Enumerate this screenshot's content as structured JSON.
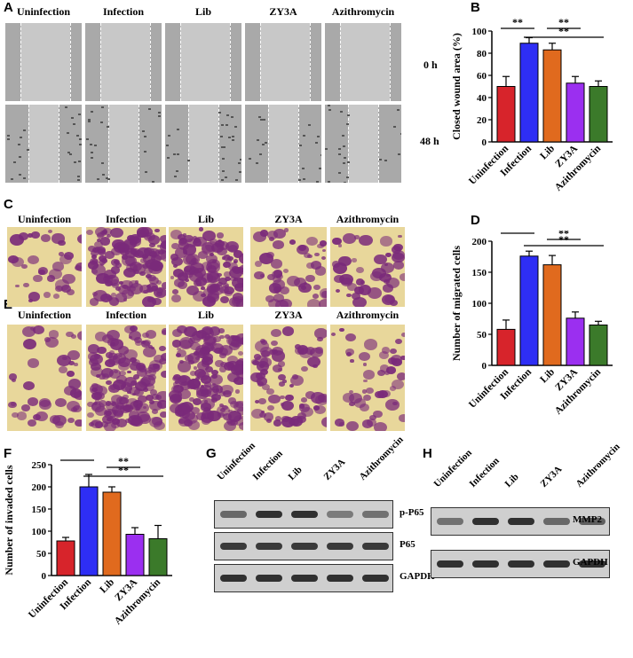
{
  "panels": {
    "A": {
      "letter": "A",
      "columns": [
        "Uninfection",
        "Infection",
        "Lib",
        "ZY3A",
        "Azithromycin"
      ],
      "rows": [
        "0 h",
        "48 h"
      ]
    },
    "C": {
      "letter": "C",
      "columns": [
        "Uninfection",
        "Infection",
        "Lib",
        "ZY3A",
        "Azithromycin"
      ]
    },
    "E": {
      "letter": "E",
      "columns": [
        "Uninfection",
        "Infection",
        "Lib",
        "ZY3A",
        "Azithromycin"
      ]
    },
    "B": {
      "letter": "B"
    },
    "D": {
      "letter": "D"
    },
    "F": {
      "letter": "F"
    },
    "G": {
      "letter": "G",
      "lanes": [
        "Uninfection",
        "Infection",
        "Lib",
        "ZY3A",
        "Azithromycin"
      ],
      "bands": [
        "p-P65",
        "P65",
        "GAPDH"
      ],
      "intensity": [
        [
          0.55,
          0.85,
          0.85,
          0.45,
          0.5
        ],
        [
          0.8,
          0.8,
          0.8,
          0.8,
          0.8
        ],
        [
          0.85,
          0.85,
          0.85,
          0.85,
          0.85
        ]
      ]
    },
    "H": {
      "letter": "H",
      "lanes": [
        "Uninfection",
        "Infection",
        "Lib",
        "ZY3A",
        "Azithromycin"
      ],
      "bands": [
        "MMP2",
        "GAPDH"
      ],
      "intensity": [
        [
          0.5,
          0.85,
          0.85,
          0.55,
          0.6
        ],
        [
          0.85,
          0.85,
          0.85,
          0.85,
          0.85
        ]
      ]
    }
  },
  "colors": {
    "bars": [
      "#d7242b",
      "#2e2ef5",
      "#e06a1e",
      "#9b2ff0",
      "#3b7a2a"
    ],
    "wound": "#a9a9a9",
    "transwell_bg": "#e8d79b",
    "stain": "#7a2a7a"
  },
  "chart_data": [
    {
      "type": "bar",
      "panel": "B",
      "categories": [
        "Uninfection",
        "Infection",
        "Lib",
        "ZY3A",
        "Azithromycin"
      ],
      "values": [
        50,
        89,
        83,
        53,
        50
      ],
      "errors": [
        9,
        5,
        6,
        6,
        5
      ],
      "ylabel": "Closed wound area (%)",
      "ylim": [
        0,
        100
      ],
      "yticks": [
        "0",
        "20",
        "40",
        "60",
        "80",
        "100"
      ],
      "significance": [
        {
          "from": 0,
          "to": 1,
          "label": "**"
        },
        {
          "from": 2,
          "to": 3,
          "label": "**"
        },
        {
          "from": 1,
          "to": 4,
          "label": "**"
        }
      ]
    },
    {
      "type": "bar",
      "panel": "D",
      "categories": [
        "Uninfection",
        "Infection",
        "Lib",
        "ZY3A",
        "Azithromycin"
      ],
      "values": [
        58,
        176,
        162,
        76,
        65
      ],
      "errors": [
        15,
        8,
        15,
        10,
        6
      ],
      "ylabel": "Number of migrated cells",
      "ylim": [
        0,
        200
      ],
      "yticks": [
        "0",
        "50",
        "100",
        "150",
        "200"
      ],
      "significance": [
        {
          "from": 0,
          "to": 1,
          "label": "***"
        },
        {
          "from": 2,
          "to": 3,
          "label": "**"
        },
        {
          "from": 1,
          "to": 4,
          "label": "**"
        }
      ]
    },
    {
      "type": "bar",
      "panel": "F",
      "categories": [
        "Uninfection",
        "Infection",
        "Lib",
        "ZY3A",
        "Azithromycin"
      ],
      "values": [
        78,
        200,
        188,
        93,
        83
      ],
      "errors": [
        8,
        28,
        12,
        15,
        30
      ],
      "ylabel": "Number of invaded cells",
      "ylim": [
        0,
        250
      ],
      "yticks": [
        "0",
        "50",
        "100",
        "150",
        "200",
        "250"
      ],
      "significance": [
        {
          "from": 0,
          "to": 1,
          "label": "**"
        },
        {
          "from": 2,
          "to": 3,
          "label": "**"
        },
        {
          "from": 1,
          "to": 4,
          "label": "**"
        }
      ]
    }
  ]
}
